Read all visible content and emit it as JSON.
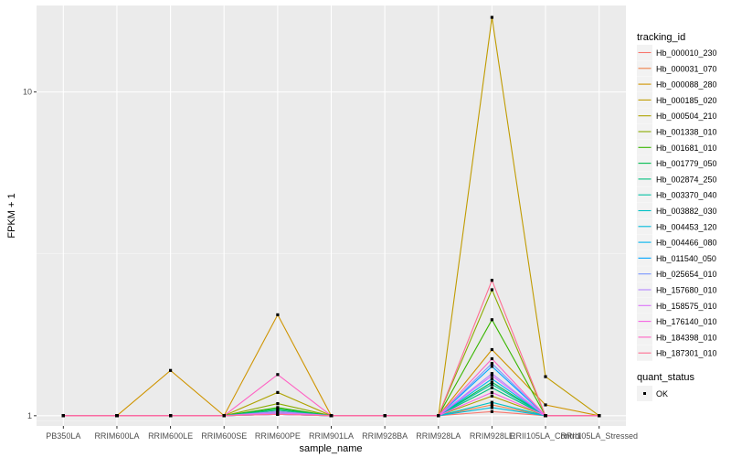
{
  "chart_data": {
    "type": "line",
    "xlabel": "sample_name",
    "ylabel": "FPKM + 1",
    "y_scale": "log10",
    "ylim": [
      0.93,
      18.5
    ],
    "yticks": [
      1,
      10
    ],
    "ytick_labels": [
      "1",
      "10"
    ],
    "grid": true,
    "legend_position": "right",
    "categories": [
      "PB350LA",
      "RRIM600LA",
      "RRIM600LE",
      "RRIM600SE",
      "RRIM600PE",
      "RRIM901LA",
      "RRIM928BA",
      "RRIM928LA",
      "RRIM928LE",
      "RRII105LA_Control",
      "RRII105LA_Stressed"
    ],
    "legend_title": "tracking_id",
    "series": [
      {
        "name": "Hb_000010_230",
        "color": "#F8766D",
        "values": [
          1,
          1,
          1,
          1,
          1.01,
          1,
          1,
          1,
          1.03,
          1,
          1
        ]
      },
      {
        "name": "Hb_000031_070",
        "color": "#EF7F49",
        "values": [
          1,
          1,
          1,
          1,
          1.02,
          1,
          1,
          1,
          1.08,
          1,
          1
        ]
      },
      {
        "name": "Hb_000088_280",
        "color": "#CF9400",
        "values": [
          1,
          1,
          1.38,
          1,
          2.05,
          1,
          1,
          1,
          1.6,
          1.08,
          1
        ]
      },
      {
        "name": "Hb_000185_020",
        "color": "#C09B00",
        "values": [
          1,
          1,
          1,
          1,
          1.03,
          1,
          1,
          1,
          17.0,
          1.32,
          1
        ]
      },
      {
        "name": "Hb_000504_210",
        "color": "#AEA200",
        "values": [
          1,
          1,
          1,
          1,
          1.18,
          1,
          1,
          1,
          1.15,
          1,
          1
        ]
      },
      {
        "name": "Hb_001338_010",
        "color": "#8AAB00",
        "values": [
          1,
          1,
          1,
          1,
          1.09,
          1,
          1,
          1,
          2.45,
          1,
          1
        ]
      },
      {
        "name": "Hb_001681_010",
        "color": "#39B600",
        "values": [
          1,
          1,
          1,
          1,
          1.06,
          1,
          1,
          1,
          1.98,
          1,
          1
        ]
      },
      {
        "name": "Hb_001779_050",
        "color": "#00BB4E",
        "values": [
          1,
          1,
          1,
          1,
          1.05,
          1,
          1,
          1,
          1.27,
          1,
          1
        ]
      },
      {
        "name": "Hb_002874_250",
        "color": "#00BF7D",
        "values": [
          1,
          1,
          1,
          1,
          1.04,
          1,
          1,
          1,
          1.22,
          1,
          1
        ]
      },
      {
        "name": "Hb_003370_040",
        "color": "#00C1A3",
        "values": [
          1,
          1,
          1,
          1,
          1.03,
          1,
          1,
          1,
          1.25,
          1,
          1
        ]
      },
      {
        "name": "Hb_003882_030",
        "color": "#00C0C4",
        "values": [
          1,
          1,
          1,
          1,
          1.02,
          1,
          1,
          1,
          1.1,
          1,
          1
        ]
      },
      {
        "name": "Hb_004453_120",
        "color": "#00BBDB",
        "values": [
          1,
          1,
          1,
          1,
          1.02,
          1,
          1,
          1,
          1.06,
          1,
          1
        ]
      },
      {
        "name": "Hb_004466_080",
        "color": "#00B4EF",
        "values": [
          1,
          1,
          1,
          1,
          1.01,
          1,
          1,
          1,
          1.3,
          1,
          1
        ]
      },
      {
        "name": "Hb_011540_050",
        "color": "#00A5FF",
        "values": [
          1,
          1,
          1,
          1,
          1.01,
          1,
          1,
          1,
          1.42,
          1,
          1
        ]
      },
      {
        "name": "Hb_025654_010",
        "color": "#7997FF",
        "values": [
          1,
          1,
          1,
          1,
          1.02,
          1,
          1,
          1,
          1.45,
          1,
          1
        ]
      },
      {
        "name": "Hb_157680_010",
        "color": "#B385FF",
        "values": [
          1,
          1,
          1,
          1,
          1.03,
          1,
          1,
          1,
          1.35,
          1,
          1
        ]
      },
      {
        "name": "Hb_158575_010",
        "color": "#DC71FA",
        "values": [
          1,
          1,
          1,
          1,
          1.02,
          1,
          1,
          1,
          1.33,
          1,
          1
        ]
      },
      {
        "name": "Hb_176140_010",
        "color": "#F564E3",
        "values": [
          1,
          1,
          1,
          1,
          1.01,
          1,
          1,
          1,
          1.18,
          1,
          1
        ]
      },
      {
        "name": "Hb_184398_010",
        "color": "#FF61C3",
        "values": [
          1,
          1,
          1,
          1.0,
          1.34,
          1,
          1,
          1,
          1.5,
          1,
          1
        ]
      },
      {
        "name": "Hb_187301_010",
        "color": "#FF6C91",
        "values": [
          1,
          1,
          1,
          1,
          1.01,
          1,
          1,
          1,
          2.62,
          1,
          1
        ]
      }
    ],
    "point_legend_title": "quant_status",
    "point_legend_label": "OK"
  }
}
